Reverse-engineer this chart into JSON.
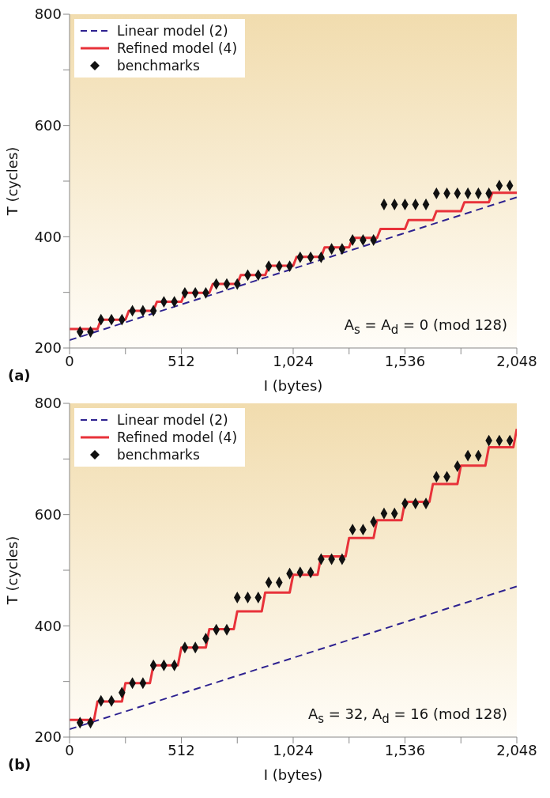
{
  "chart_data": [
    {
      "type": "line",
      "xlabel": "I (bytes)",
      "ylabel": "T (cycles)",
      "xlim": [
        0,
        2048
      ],
      "ylim": [
        200,
        800
      ],
      "xticks": [
        0,
        {
          "value": 256,
          "label": null
        },
        {
          "value": 512,
          "label": "512"
        },
        {
          "value": 768,
          "label": null
        },
        {
          "value": 1024,
          "label": "1,024"
        },
        {
          "value": 1280,
          "label": null
        },
        {
          "value": 1536,
          "label": "1,536"
        },
        {
          "value": 1792,
          "label": null
        },
        {
          "value": 2048,
          "label": "2,048"
        }
      ],
      "yticks": [
        200,
        {
          "value": 300,
          "label": null
        },
        400,
        {
          "value": 500,
          "label": null
        },
        600,
        {
          "value": 700,
          "label": null
        },
        800
      ],
      "legend": "top left",
      "grid": false,
      "annotations": [
        "A$_{s}$ = A$_{d}$ = 0 (mod 128)",
        "(a)"
      ],
      "series": [
        {
          "name": "Linear model (2)",
          "line_style": "dashed",
          "marker": "none",
          "color": "#2e2290",
          "x": [
            0,
            2048
          ],
          "values": [
            214,
            471
          ]
        },
        {
          "name": "Refined model (4)",
          "line_style": "solid",
          "marker": "none",
          "color": "#e8323a",
          "x": [
            0,
            128,
            144,
            256,
            272,
            384,
            400,
            512,
            528,
            640,
            656,
            768,
            784,
            896,
            912,
            1024,
            1040,
            1152,
            1168,
            1280,
            1296,
            1408,
            1424,
            1536,
            1552,
            1664,
            1680,
            1792,
            1808,
            1920,
            1936,
            2048
          ],
          "values": [
            234,
            234,
            251,
            251,
            267,
            267,
            283,
            283,
            299,
            299,
            315,
            315,
            331,
            331,
            348,
            348,
            364,
            364,
            381,
            381,
            398,
            398,
            414,
            414,
            430,
            430,
            446,
            446,
            462,
            462,
            479,
            479
          ]
        },
        {
          "name": "benchmarks",
          "type": "scatter",
          "marker": "diamond",
          "color": "#111111",
          "x": [
            48,
            96,
            144,
            192,
            240,
            288,
            336,
            384,
            432,
            480,
            528,
            576,
            624,
            672,
            720,
            768,
            816,
            864,
            912,
            960,
            1008,
            1056,
            1104,
            1152,
            1200,
            1248,
            1296,
            1344,
            1392,
            1440,
            1488,
            1536,
            1584,
            1632,
            1680,
            1728,
            1776,
            1824,
            1872,
            1920,
            1968,
            2016
          ],
          "values": [
            229,
            229,
            251,
            251,
            251,
            267,
            267,
            267,
            283,
            283,
            299,
            299,
            299,
            315,
            315,
            315,
            331,
            331,
            347,
            347,
            347,
            363,
            363,
            363,
            378,
            378,
            394,
            394,
            394,
            458,
            458,
            458,
            458,
            458,
            478,
            478,
            478,
            478,
            478,
            478,
            492,
            492
          ]
        }
      ]
    },
    {
      "type": "line",
      "xlabel": "I (bytes)",
      "ylabel": "T (cycles)",
      "xlim": [
        0,
        2048
      ],
      "ylim": [
        200,
        800
      ],
      "xticks": [
        0,
        {
          "value": 256,
          "label": null
        },
        {
          "value": 512,
          "label": "512"
        },
        {
          "value": 768,
          "label": null
        },
        {
          "value": 1024,
          "label": "1,024"
        },
        {
          "value": 1280,
          "label": null
        },
        {
          "value": 1536,
          "label": "1,536"
        },
        {
          "value": 1792,
          "label": null
        },
        {
          "value": 2048,
          "label": "2,048"
        }
      ],
      "yticks": [
        200,
        {
          "value": 300,
          "label": null
        },
        400,
        {
          "value": 500,
          "label": null
        },
        600,
        {
          "value": 700,
          "label": null
        },
        800
      ],
      "legend": "top left",
      "grid": false,
      "annotations": [
        "A$_{s}$ = 32, A$_{d}$ = 16 (mod 128)",
        "(b)"
      ],
      "series": [
        {
          "name": "Linear model (2)",
          "line_style": "dashed",
          "marker": "none",
          "color": "#2e2290",
          "x": [
            0,
            2048
          ],
          "values": [
            214,
            471
          ]
        },
        {
          "name": "Refined model (4)",
          "line_style": "solid",
          "marker": "none",
          "color": "#e8323a",
          "x": [
            0,
            112,
            128,
            240,
            256,
            368,
            384,
            496,
            512,
            624,
            640,
            752,
            768,
            880,
            896,
            1008,
            1024,
            1136,
            1152,
            1264,
            1280,
            1392,
            1408,
            1520,
            1536,
            1648,
            1664,
            1776,
            1792,
            1904,
            1920,
            2032,
            2048
          ],
          "values": [
            231,
            231,
            264,
            264,
            297,
            297,
            329,
            329,
            361,
            361,
            394,
            394,
            426,
            426,
            460,
            460,
            492,
            492,
            525,
            525,
            558,
            558,
            590,
            590,
            623,
            623,
            655,
            655,
            688,
            688,
            721,
            721,
            754
          ]
        },
        {
          "name": "benchmarks",
          "type": "scatter",
          "marker": "diamond",
          "color": "#111111",
          "x": [
            48,
            96,
            144,
            192,
            240,
            288,
            336,
            384,
            432,
            480,
            528,
            576,
            624,
            672,
            720,
            768,
            816,
            864,
            912,
            960,
            1008,
            1056,
            1104,
            1152,
            1200,
            1248,
            1296,
            1344,
            1392,
            1440,
            1488,
            1536,
            1584,
            1632,
            1680,
            1728,
            1776,
            1824,
            1872,
            1920,
            1968,
            2016
          ],
          "values": [
            226,
            226,
            265,
            265,
            280,
            297,
            297,
            329,
            329,
            329,
            361,
            361,
            377,
            393,
            393,
            451,
            451,
            451,
            478,
            478,
            494,
            496,
            496,
            520,
            520,
            520,
            573,
            573,
            587,
            602,
            602,
            620,
            620,
            620,
            668,
            668,
            687,
            706,
            706,
            733,
            733,
            733
          ]
        }
      ]
    }
  ]
}
